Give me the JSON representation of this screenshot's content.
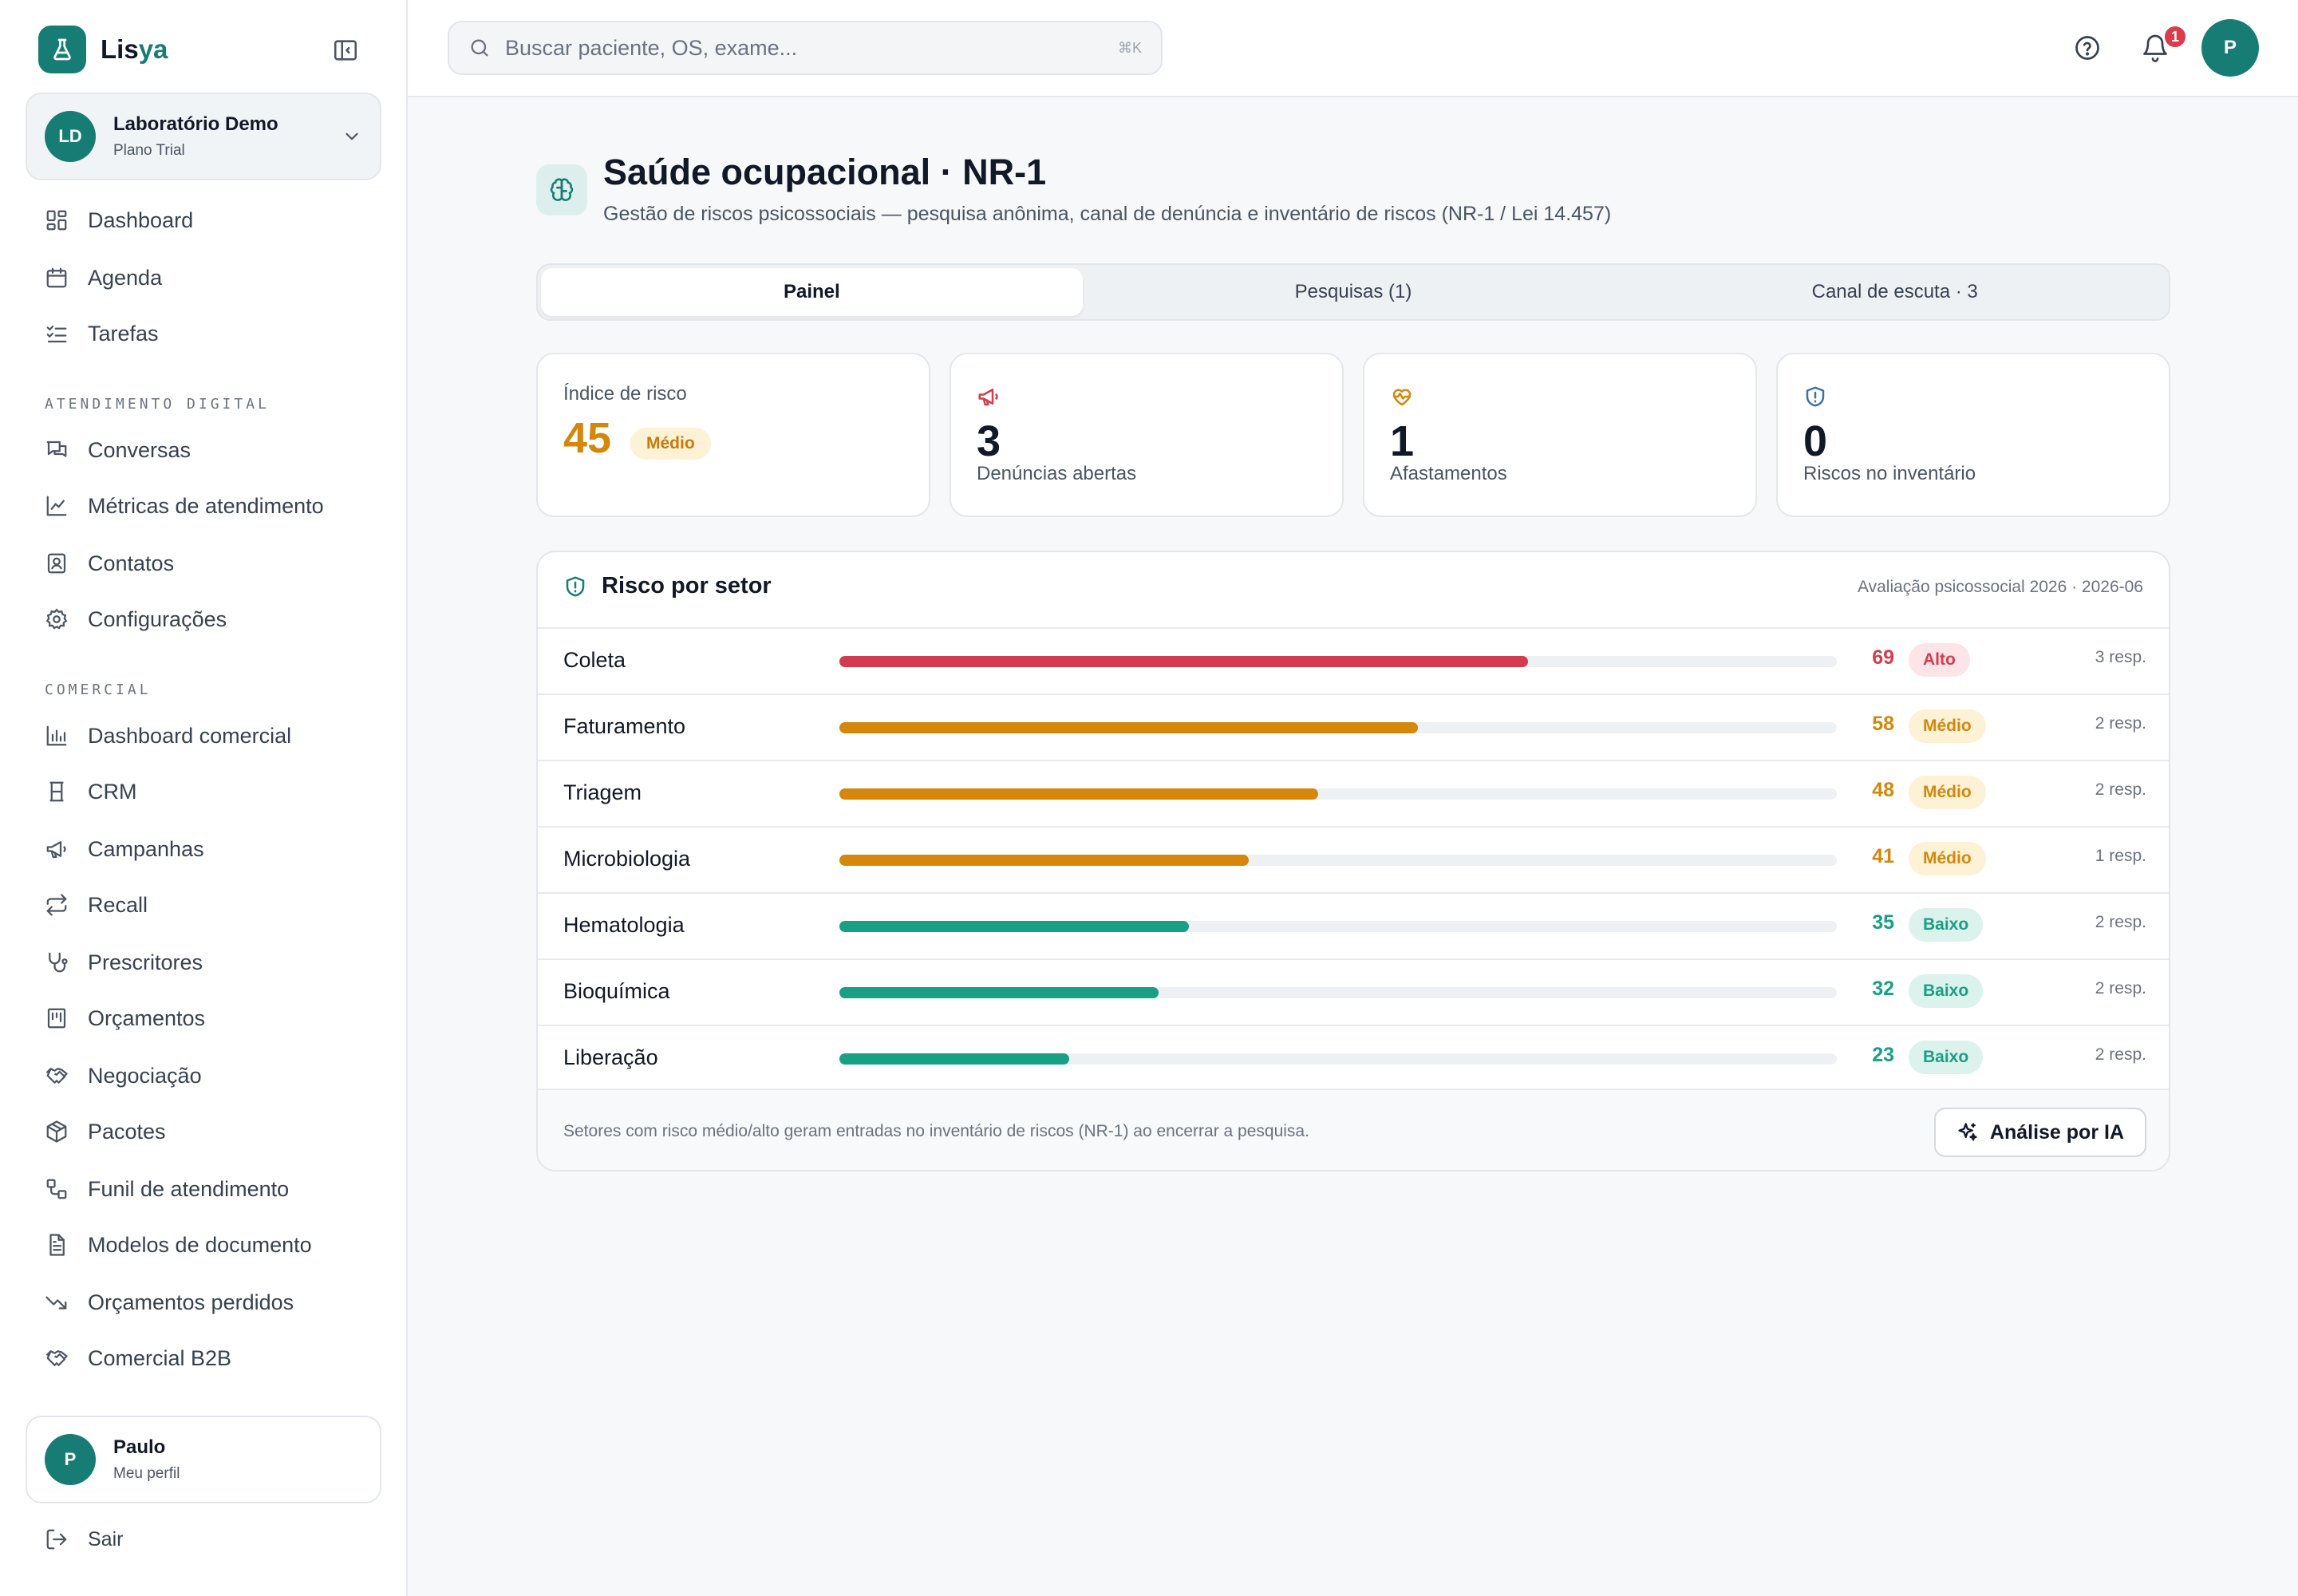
{
  "brand": {
    "name_part1": "Lis",
    "name_part2": "ya",
    "color": "#177d74"
  },
  "org": {
    "initials": "LD",
    "name": "Laboratório Demo",
    "plan": "Plano Trial"
  },
  "nav": {
    "main": [
      {
        "label": "Dashboard",
        "icon": "dashboard-icon"
      },
      {
        "label": "Agenda",
        "icon": "calendar-icon"
      },
      {
        "label": "Tarefas",
        "icon": "tasks-icon"
      }
    ],
    "section_digital": "ATENDIMENTO DIGITAL",
    "digital": [
      {
        "label": "Conversas",
        "icon": "chat-icon"
      },
      {
        "label": "Métricas de atendimento",
        "icon": "line-chart-icon"
      },
      {
        "label": "Contatos",
        "icon": "contacts-icon"
      },
      {
        "label": "Configurações",
        "icon": "gear-icon"
      }
    ],
    "section_comercial": "COMERCIAL",
    "comercial": [
      {
        "label": "Dashboard comercial",
        "icon": "bar-chart-icon"
      },
      {
        "label": "CRM",
        "icon": "crm-icon"
      },
      {
        "label": "Campanhas",
        "icon": "megaphone-icon"
      },
      {
        "label": "Recall",
        "icon": "repeat-icon"
      },
      {
        "label": "Prescritores",
        "icon": "stethoscope-icon"
      },
      {
        "label": "Orçamentos",
        "icon": "receipt-icon"
      },
      {
        "label": "Negociação",
        "icon": "handshake-icon"
      },
      {
        "label": "Pacotes",
        "icon": "package-icon"
      },
      {
        "label": "Funil de atendimento",
        "icon": "funnel-icon"
      },
      {
        "label": "Modelos de documento",
        "icon": "document-icon"
      },
      {
        "label": "Orçamentos perdidos",
        "icon": "trending-down-icon"
      },
      {
        "label": "Comercial B2B",
        "icon": "handshake-icon"
      }
    ]
  },
  "user": {
    "initial": "P",
    "name": "Paulo",
    "sub": "Meu perfil"
  },
  "logout_label": "Sair",
  "search": {
    "placeholder": "Buscar paciente, OS, exame...",
    "shortcut": "⌘K"
  },
  "notifications": {
    "count": "1"
  },
  "page": {
    "title": "Saúde ocupacional · NR-1",
    "subtitle": "Gestão de riscos psicossociais — pesquisa anônima, canal de denúncia e inventário de riscos (NR-1 / Lei 14.457)"
  },
  "tabs": [
    {
      "label": "Painel",
      "active": true
    },
    {
      "label": "Pesquisas (1)",
      "active": false
    },
    {
      "label": "Canal de escuta · 3",
      "active": false
    }
  ],
  "stats": {
    "risk_index": {
      "label": "Índice de risco",
      "value": "45",
      "level": "Médio"
    },
    "complaints": {
      "value": "3",
      "caption": "Denúncias abertas"
    },
    "leaves": {
      "value": "1",
      "caption": "Afastamentos"
    },
    "inventory": {
      "value": "0",
      "caption": "Riscos no inventário"
    }
  },
  "risk_by_sector": {
    "title": "Risco por setor",
    "meta": "Avaliação psicossocial 2026 · 2026-06",
    "rows": [
      {
        "sector": "Coleta",
        "score": 69,
        "score_text": "69",
        "level": "Alto",
        "responses": "3 resp."
      },
      {
        "sector": "Faturamento",
        "score": 58,
        "score_text": "58",
        "level": "Médio",
        "responses": "2 resp."
      },
      {
        "sector": "Triagem",
        "score": 48,
        "score_text": "48",
        "level": "Médio",
        "responses": "2 resp."
      },
      {
        "sector": "Microbiologia",
        "score": 41,
        "score_text": "41",
        "level": "Médio",
        "responses": "1 resp."
      },
      {
        "sector": "Hematologia",
        "score": 35,
        "score_text": "35",
        "level": "Baixo",
        "responses": "2 resp."
      },
      {
        "sector": "Bioquímica",
        "score": 32,
        "score_text": "32",
        "level": "Baixo",
        "responses": "2 resp."
      },
      {
        "sector": "Liberação",
        "score": 23,
        "score_text": "23",
        "level": "Baixo",
        "responses": "2 resp."
      }
    ],
    "footer_note": "Setores com risco médio/alto geram entradas no inventário de riscos (NR-1) ao encerrar a pesquisa.",
    "ai_button": "Análise por IA"
  },
  "colors": {
    "alto": "#d33c4f",
    "alto_bg": "#fde4e7",
    "medio": "#d4870b",
    "medio_bg": "#fdf1d6",
    "baixo": "#18a084",
    "baixo_bg": "#dcf2ec"
  }
}
